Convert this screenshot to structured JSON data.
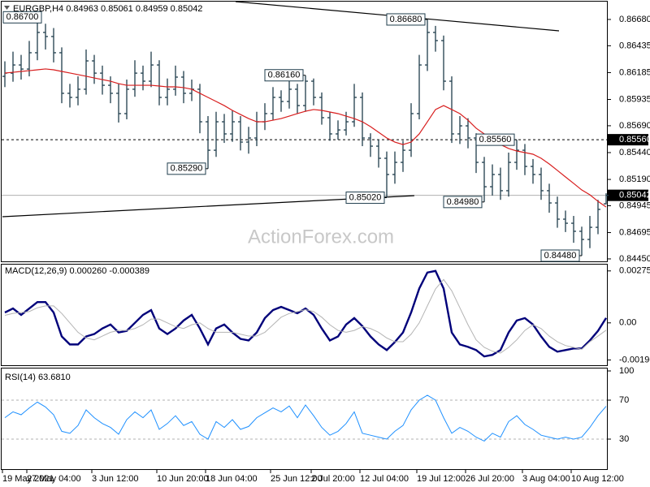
{
  "chart_data": [
    {
      "type": "ohlc",
      "title": "EURGBP,H4  0.84963 0.85061 0.84959 0.85042",
      "watermark": "ActionForex.com",
      "color": "#1f3d4c",
      "categories": [
        "19 May 2021",
        null,
        null,
        "27 May 04:00",
        null,
        null,
        null,
        null,
        null,
        null,
        null,
        "3 Jun 12:00",
        null,
        null,
        null,
        null,
        null,
        null,
        null,
        "10 Jun 20:00",
        null,
        null,
        null,
        null,
        null,
        "18 Jun 04:00",
        null,
        null,
        null,
        null,
        null,
        null,
        null,
        "25 Jun 12:00",
        null,
        null,
        null,
        null,
        "2 Jul 20:00",
        null,
        null,
        null,
        null,
        null,
        "12 Jul 04:00",
        null,
        null,
        null,
        null,
        null,
        null,
        "19 Jul 12:00",
        null,
        null,
        null,
        null,
        null,
        "26 Jul 20:00",
        null,
        null,
        null,
        null,
        null,
        null,
        "3 Aug 04:00",
        null,
        null,
        null,
        null,
        null,
        "10 Aug 12:00",
        null,
        null,
        null,
        null
      ],
      "open": [
        0.8615,
        0.8618,
        0.86256,
        0.86218,
        0.8637,
        0.86559,
        0.86521,
        0.8637,
        0.85992,
        0.85954,
        0.8603,
        0.86294,
        0.8618,
        0.86067,
        0.85992,
        0.85803,
        0.8603,
        0.8618,
        0.86105,
        0.86256,
        0.85954,
        0.8603,
        0.86143,
        0.85992,
        0.8603,
        0.85727,
        0.85462,
        0.85727,
        0.85614,
        0.85727,
        0.85538,
        0.85576,
        0.85727,
        0.85803,
        0.85954,
        0.85916,
        0.8603,
        0.85878,
        0.86105,
        0.85954,
        0.85765,
        0.85614,
        0.85651,
        0.85727,
        0.85954,
        0.85576,
        0.855,
        0.85387,
        0.85236,
        0.85349,
        0.85462,
        0.85803,
        0.86256,
        0.86559,
        0.86483,
        0.86105,
        0.85614,
        0.85689,
        0.85576,
        0.85349,
        0.85122,
        0.85236,
        0.85085,
        0.85349,
        0.85462,
        0.85311,
        0.85236,
        0.85085,
        0.84971,
        0.8482,
        0.84782,
        0.84707,
        0.84631,
        0.84744,
        0.84963
      ],
      "high": [
        0.8629,
        0.8638,
        0.8635,
        0.8648,
        0.867,
        0.8664,
        0.866,
        0.8642,
        0.8608,
        0.8615,
        0.864,
        0.8635,
        0.8625,
        0.8615,
        0.8608,
        0.8612,
        0.863,
        0.8625,
        0.8638,
        0.863,
        0.8613,
        0.8625,
        0.862,
        0.8612,
        0.8608,
        0.8578,
        0.8582,
        0.858,
        0.8583,
        0.8578,
        0.8568,
        0.8582,
        0.859,
        0.8605,
        0.8602,
        0.8612,
        0.8608,
        0.8616,
        0.8613,
        0.86,
        0.8582,
        0.8574,
        0.8582,
        0.8608,
        0.86,
        0.8562,
        0.8556,
        0.8545,
        0.8545,
        0.8555,
        0.859,
        0.8635,
        0.8668,
        0.8662,
        0.8653,
        0.8615,
        0.8578,
        0.8576,
        0.8562,
        0.854,
        0.8533,
        0.853,
        0.8544,
        0.8556,
        0.8552,
        0.8538,
        0.853,
        0.8515,
        0.8503,
        0.849,
        0.8485,
        0.8475,
        0.8485,
        0.85,
        0.85061
      ],
      "low": [
        0.8605,
        0.861,
        0.8612,
        0.8615,
        0.863,
        0.864,
        0.8628,
        0.859,
        0.8586,
        0.8588,
        0.8598,
        0.8608,
        0.8598,
        0.859,
        0.8572,
        0.8575,
        0.8596,
        0.8602,
        0.8605,
        0.8588,
        0.8588,
        0.8597,
        0.859,
        0.8592,
        0.8562,
        0.8529,
        0.854,
        0.8553,
        0.8554,
        0.8546,
        0.8543,
        0.855,
        0.8565,
        0.8574,
        0.8582,
        0.8585,
        0.858,
        0.8582,
        0.8588,
        0.857,
        0.8555,
        0.8556,
        0.856,
        0.8568,
        0.855,
        0.854,
        0.853,
        0.8502,
        0.8515,
        0.8526,
        0.854,
        0.8575,
        0.862,
        0.8638,
        0.8602,
        0.8553,
        0.8552,
        0.8548,
        0.8525,
        0.8498,
        0.8504,
        0.85,
        0.8503,
        0.8528,
        0.8523,
        0.8515,
        0.85,
        0.8488,
        0.8474,
        0.847,
        0.846,
        0.8448,
        0.8455,
        0.8468,
        0.84959
      ],
      "close": [
        0.8618,
        0.86256,
        0.86218,
        0.8637,
        0.86559,
        0.86521,
        0.8637,
        0.85992,
        0.85954,
        0.8603,
        0.86294,
        0.8618,
        0.86067,
        0.85992,
        0.85803,
        0.8603,
        0.8618,
        0.86105,
        0.86256,
        0.85954,
        0.8603,
        0.86143,
        0.85992,
        0.8603,
        0.85727,
        0.85462,
        0.85727,
        0.85614,
        0.85727,
        0.85538,
        0.85576,
        0.85727,
        0.85803,
        0.85954,
        0.85916,
        0.8603,
        0.85878,
        0.86105,
        0.85954,
        0.85765,
        0.85614,
        0.85651,
        0.85727,
        0.85954,
        0.85576,
        0.855,
        0.85387,
        0.85236,
        0.85349,
        0.85462,
        0.85803,
        0.86256,
        0.86559,
        0.86483,
        0.86105,
        0.85614,
        0.85689,
        0.85576,
        0.85349,
        0.85122,
        0.85236,
        0.85085,
        0.85349,
        0.85462,
        0.85311,
        0.85236,
        0.85085,
        0.84971,
        0.8482,
        0.84782,
        0.84707,
        0.84631,
        0.84744,
        0.84911,
        0.85042
      ],
      "overlays": [
        {
          "color": "#d81e1e",
          "values": [
            0.86181,
            0.86188,
            0.86196,
            0.86203,
            0.86211,
            0.86219,
            0.86211,
            0.86196,
            0.86181,
            0.86166,
            0.86151,
            0.86135,
            0.8612,
            0.86105,
            0.86082,
            0.86067,
            0.86067,
            0.86067,
            0.86067,
            0.8606,
            0.86052,
            0.86052,
            0.86045,
            0.8603,
            0.85992,
            0.85954,
            0.85916,
            0.85878,
            0.85833,
            0.85795,
            0.85757,
            0.85727,
            0.85727,
            0.85742,
            0.85757,
            0.8578,
            0.85803,
            0.85825,
            0.85841,
            0.85833,
            0.85818,
            0.85803,
            0.8578,
            0.85757,
            0.85727,
            0.85682,
            0.85629,
            0.85576,
            0.85538,
            0.85515,
            0.85538,
            0.85614,
            0.85727,
            0.85841,
            0.85878,
            0.85841,
            0.85803,
            0.85742,
            0.85667,
            0.85614,
            0.85561,
            0.85515,
            0.85478,
            0.85455,
            0.8544,
            0.85425,
            0.85387,
            0.85334,
            0.85274,
            0.85213,
            0.85153,
            0.85092,
            0.85047,
            0.84986,
            0.84933
          ]
        }
      ],
      "trendlines": [
        {
          "x": [
            28.4,
            68.2
          ],
          "y": [
            0.86846,
            0.86574
          ]
        },
        {
          "x": [
            -0.3,
            50.4
          ],
          "y": [
            0.84843,
            0.85039
          ]
        }
      ],
      "hlines": [
        {
          "value": 0.8556,
          "label": "0.85560",
          "dashed": true
        },
        {
          "value": 0.85042,
          "label": "0.85042",
          "dashed": false
        }
      ],
      "annotations": [
        {
          "bar": 4,
          "value": 0.867,
          "label": "0.86700"
        },
        {
          "bar": 52,
          "value": 0.8668,
          "label": "0.86680"
        },
        {
          "bar": 37,
          "value": 0.8616,
          "label": "0.86160"
        },
        {
          "bar": 25,
          "value": 0.8529,
          "label": "0.85290"
        },
        {
          "bar": 47,
          "value": 0.8502,
          "label": "0.85020"
        },
        {
          "bar": 59,
          "value": 0.8498,
          "label": "0.84980"
        },
        {
          "bar": 63,
          "value": 0.8556,
          "label": "0.85560"
        },
        {
          "bar": 71,
          "value": 0.8448,
          "label": "0.84480"
        }
      ],
      "ylim": [
        0.84427,
        0.86846
      ],
      "yticks": [
        {
          "value": 0.8668,
          "label": "0.86680"
        },
        0.86435,
        0.86185,
        0.85935,
        {
          "value": 0.8569,
          "label": "0.85690"
        },
        {
          "value": 0.8544,
          "label": "0.85440"
        },
        {
          "value": 0.8519,
          "label": "0.85190"
        },
        0.84945,
        0.84695,
        {
          "value": 0.8445,
          "label": "0.84450"
        }
      ]
    },
    {
      "type": "macd",
      "title": "MACD(12,26,9) 0.000260 -0.000389",
      "series": [
        {
          "color": "#00007a",
          "values": [
            0.000551,
            0.000763,
            0.000424,
            0.000763,
            0.001102,
            0.001102,
            0.000551,
            -0.00072,
            -0.001144,
            -0.001144,
            -0.00072,
            -0.000593,
            -0.000297,
            -8.5e-05,
            -0.000509,
            -0.000424,
            0,
            0.000424,
            0.000678,
            -0.000297,
            -0.000593,
            -0.000297,
            0.000127,
            0.000424,
            -0.000297,
            -0.001144,
            -0.000297,
            -8.5e-05,
            -0.000509,
            -0.000848,
            -0.000932,
            -0.000509,
            0.000254,
            0.000678,
            0.000848,
            0.000678,
            0.000509,
            0.000763,
            0.000424,
            -0.000297,
            -0.000932,
            -0.00072,
            -8.5e-05,
            0.000254,
            -0.00017,
            -0.00072,
            -0.001144,
            -0.001441,
            -0.001017,
            -0.000509,
            0.000551,
            0.001822,
            0.00267,
            0.002755,
            0.001822,
            -0.000509,
            -0.001144,
            -0.001271,
            -0.001441,
            -0.00178,
            -0.001695,
            -0.001441,
            -0.000509,
            0.000127,
            0.000254,
            -8.5e-05,
            -0.00072,
            -0.001271,
            -0.001526,
            -0.001441,
            -0.001356,
            -0.001356,
            -0.000932,
            -0.000424,
            0.00026
          ]
        },
        {
          "color": "#b4b4b4",
          "values": [
            0.0004,
            0.0005,
            0.00055,
            0.0006,
            0.0008,
            0.0009,
            0.0009,
            0.0005,
            0,
            -0.0005,
            -0.0008,
            -0.0009,
            -0.0007,
            -0.0005,
            -0.0004,
            -0.0004,
            -0.0003,
            -0.0001,
            0.0002,
            0.0002,
            0,
            -0.0002,
            -0.0003,
            -0.0001,
            0,
            -0.0003,
            -0.0005,
            -0.0005,
            -0.0005,
            -0.0006,
            -0.0007,
            -0.0007,
            -0.0005,
            -0.0001,
            0.0003,
            0.0005,
            0.0006,
            0.0007,
            0.0006,
            0.0003,
            -0.0001,
            -0.0004,
            -0.0005,
            -0.0004,
            -0.0002,
            -0.0003,
            -0.0005,
            -0.0008,
            -0.001,
            -0.001,
            -0.0006,
            0,
            0.0009,
            0.0018,
            0.0023,
            0.0017,
            0.0008,
            -0.0001,
            -0.0009,
            -0.0013,
            -0.0015,
            -0.0016,
            -0.0013,
            -0.0009,
            -0.0004,
            -0.0001,
            -0.0003,
            -0.0007,
            -0.001,
            -0.0012,
            -0.0013,
            -0.0014,
            -0.001,
            -0.0007,
            -0.000389
          ]
        }
      ],
      "ylim": [
        -0.00229,
        0.00309
      ],
      "yticks": [
        0.002755,
        {
          "value": 0,
          "label": "0.00"
        },
        -0.001968
      ]
    },
    {
      "type": "rsi",
      "title": "RSI(14) 63.6810",
      "series": [
        {
          "color": "#1e90ff",
          "values": [
            52,
            58,
            55,
            62,
            68,
            63,
            55,
            38,
            36,
            44,
            60,
            52,
            46,
            42,
            35,
            50,
            58,
            52,
            60,
            40,
            46,
            54,
            44,
            48,
            35,
            30,
            48,
            42,
            50,
            40,
            43,
            52,
            57,
            62,
            58,
            64,
            52,
            65,
            54,
            42,
            34,
            38,
            46,
            58,
            36,
            34,
            32,
            30,
            38,
            44,
            60,
            70,
            75,
            70,
            52,
            36,
            42,
            38,
            32,
            28,
            36,
            32,
            48,
            54,
            45,
            40,
            34,
            32,
            30,
            32,
            30,
            32,
            42,
            54,
            63.681
          ]
        }
      ],
      "levels": [
        70,
        30
      ],
      "ylim": [
        0,
        100
      ],
      "yticks": [
        100,
        70,
        30
      ]
    }
  ]
}
